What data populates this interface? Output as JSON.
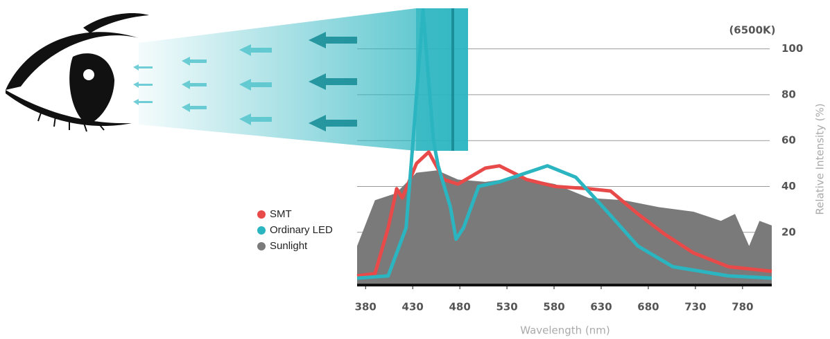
{
  "chart_data": {
    "type": "line",
    "annotation": "(6500K)",
    "x_label": "Wavelength (nm)",
    "y_label": "Relative Intensity (%)",
    "xlim": [
      371,
      811
    ],
    "xticks": [
      380,
      430,
      480,
      530,
      580,
      630,
      680,
      730,
      780
    ],
    "ylim": [
      -3,
      118
    ],
    "yticks": [
      20,
      40,
      60,
      80,
      100
    ],
    "grid": true,
    "series": [
      {
        "name": "SMT",
        "color": "#e84a4a",
        "style": "line",
        "x": [
          371,
          390,
          404,
          413,
          419,
          434,
          447,
          463,
          478,
          507,
          522,
          551,
          581,
          617,
          640,
          669,
          698,
          728,
          765,
          811
        ],
        "values": [
          1,
          2,
          22,
          39,
          35,
          50,
          55,
          43,
          41,
          48,
          49,
          43,
          40,
          39,
          38,
          28,
          19,
          11,
          5,
          3
        ]
      },
      {
        "name": "Ordinary LED",
        "color": "#2bb5c0",
        "style": "line",
        "x": [
          371,
          404,
          423,
          430,
          441,
          452,
          457,
          470,
          476,
          484,
          500,
          522,
          573,
          603,
          632,
          669,
          706,
          765,
          811
        ],
        "values": [
          0,
          1,
          22,
          58,
          117,
          60,
          49,
          31,
          17,
          22,
          40,
          42,
          49,
          44,
          31,
          14,
          5,
          1,
          0
        ]
      },
      {
        "name": "Sunlight",
        "color": "#7a7a7a",
        "style": "area",
        "x": [
          371,
          390,
          412,
          434,
          456,
          478,
          507,
          544,
          581,
          617,
          654,
          691,
          728,
          757,
          772,
          787,
          798,
          811
        ],
        "values": [
          14,
          34,
          37,
          46,
          47,
          43,
          42,
          44,
          41,
          35,
          34,
          31,
          29,
          25,
          28,
          14,
          25,
          23
        ]
      }
    ]
  }
}
